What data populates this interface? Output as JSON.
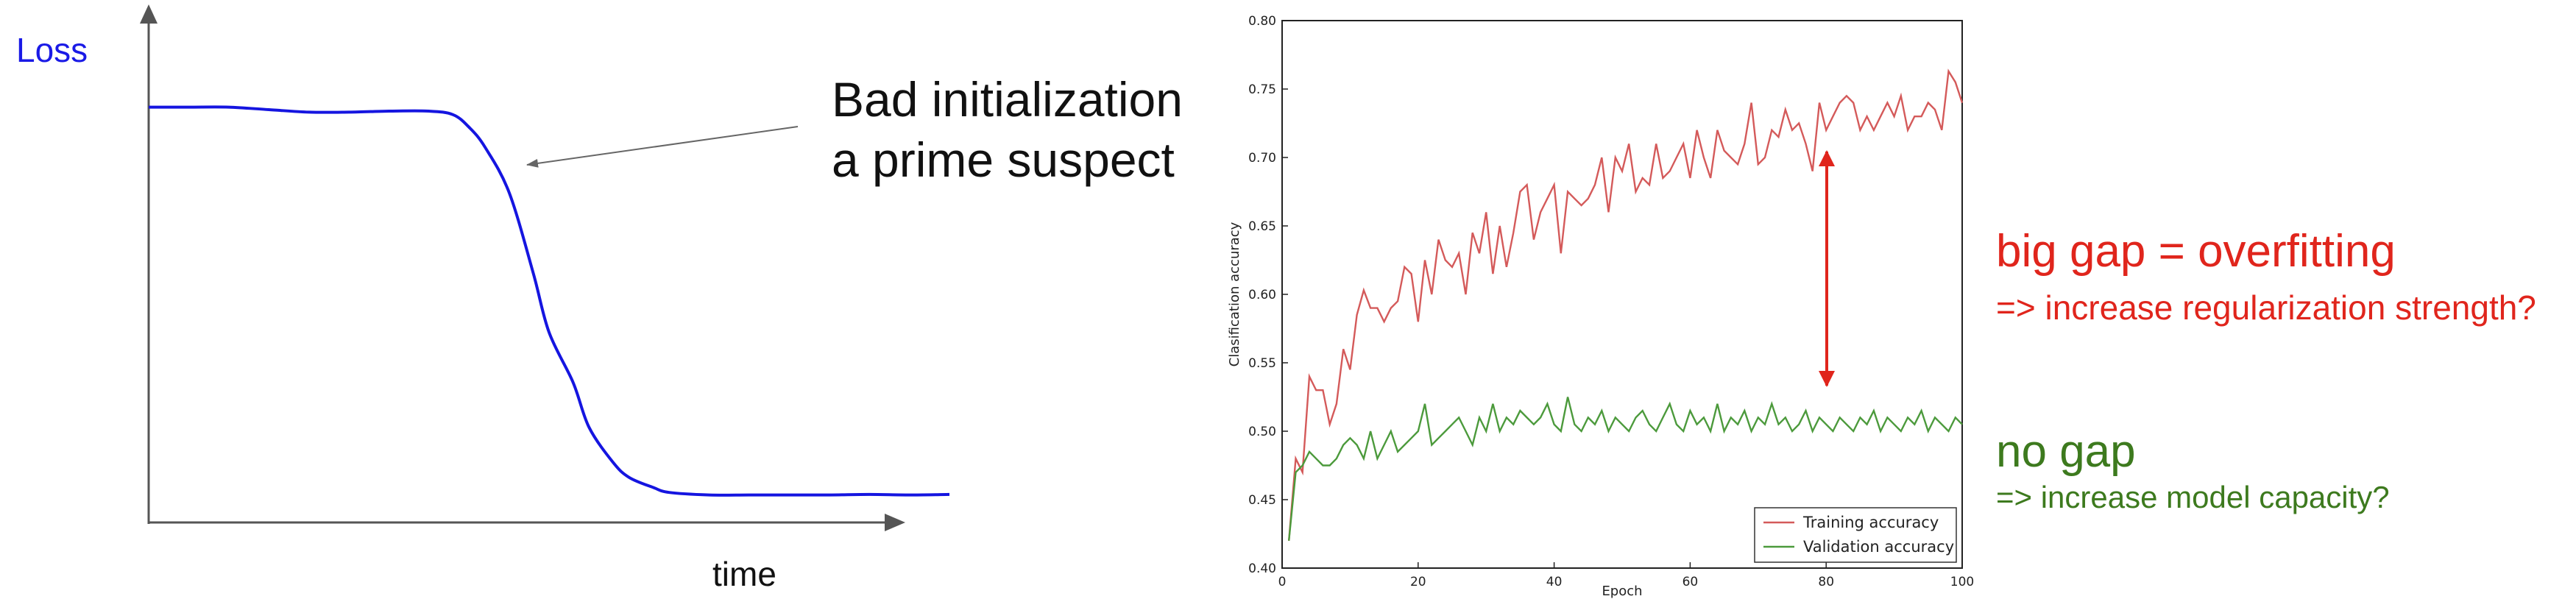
{
  "colors": {
    "loss_curve": "#1515e0",
    "loss_label": "#1a1ae6",
    "training": "#d45a5a",
    "validation": "#4c9a3c",
    "gap_arrow": "#e0251c",
    "overfit_text": "#e0251c",
    "nogap_text": "#3d7a1e",
    "axis": "#555555"
  },
  "left_panel": {
    "y_label": "Loss",
    "x_label": "time",
    "annotation_line1": "Bad initialization",
    "annotation_line2": "a prime suspect"
  },
  "right_panel": {
    "overfit_title": "big gap = overfitting",
    "overfit_hint": "=> increase regularization strength?",
    "nogap_title": "no gap",
    "nogap_hint": "=> increase model capacity?"
  },
  "chart_data": [
    {
      "type": "line",
      "title": "",
      "xlabel": "time",
      "ylabel": "Loss",
      "x": [
        0,
        0.05,
        0.1,
        0.15,
        0.2,
        0.25,
        0.3,
        0.35,
        0.38,
        0.4,
        0.42,
        0.45,
        0.48,
        0.5,
        0.53,
        0.55,
        0.58,
        0.6,
        0.63,
        0.65,
        0.7,
        0.75,
        0.8,
        0.85,
        0.9,
        0.95,
        1.0
      ],
      "series": [
        {
          "values": [
            0.83,
            0.83,
            0.83,
            0.825,
            0.82,
            0.82,
            0.822,
            0.822,
            0.815,
            0.79,
            0.75,
            0.66,
            0.5,
            0.38,
            0.28,
            0.19,
            0.12,
            0.09,
            0.07,
            0.06,
            0.055,
            0.055,
            0.055,
            0.055,
            0.056,
            0.055,
            0.056
          ]
        }
      ]
    },
    {
      "type": "line",
      "title": "",
      "xlabel": "Epoch",
      "ylabel": "Clasification accuracy",
      "xlim": [
        0,
        100
      ],
      "ylim": [
        0.4,
        0.8
      ],
      "x_ticks": [
        "0",
        "20",
        "40",
        "60",
        "80",
        "100"
      ],
      "y_ticks": [
        "0.40",
        "0.45",
        "0.50",
        "0.55",
        "0.60",
        "0.65",
        "0.70",
        "0.75",
        "0.80"
      ],
      "legend_position": "lower right",
      "grid": false,
      "x": [
        1,
        2,
        3,
        4,
        5,
        6,
        7,
        8,
        9,
        10,
        11,
        12,
        13,
        14,
        15,
        16,
        17,
        18,
        19,
        20,
        21,
        22,
        23,
        24,
        25,
        26,
        27,
        28,
        29,
        30,
        31,
        32,
        33,
        34,
        35,
        36,
        37,
        38,
        39,
        40,
        41,
        42,
        43,
        44,
        45,
        46,
        47,
        48,
        49,
        50,
        51,
        52,
        53,
        54,
        55,
        56,
        57,
        58,
        59,
        60,
        61,
        62,
        63,
        64,
        65,
        66,
        67,
        68,
        69,
        70,
        71,
        72,
        73,
        74,
        75,
        76,
        77,
        78,
        79,
        80,
        81,
        82,
        83,
        84,
        85,
        86,
        87,
        88,
        89,
        90,
        91,
        92,
        93,
        94,
        95,
        96,
        97,
        98,
        99,
        100
      ],
      "series": [
        {
          "name": "Training accuracy",
          "values": [
            0.42,
            0.48,
            0.47,
            0.54,
            0.53,
            0.53,
            0.505,
            0.52,
            0.56,
            0.545,
            0.585,
            0.603,
            0.59,
            0.59,
            0.58,
            0.59,
            0.595,
            0.62,
            0.615,
            0.58,
            0.625,
            0.6,
            0.64,
            0.625,
            0.62,
            0.63,
            0.6,
            0.645,
            0.63,
            0.66,
            0.615,
            0.65,
            0.62,
            0.645,
            0.675,
            0.68,
            0.64,
            0.66,
            0.67,
            0.68,
            0.63,
            0.675,
            0.67,
            0.665,
            0.67,
            0.68,
            0.7,
            0.66,
            0.7,
            0.69,
            0.71,
            0.675,
            0.685,
            0.68,
            0.71,
            0.685,
            0.69,
            0.7,
            0.71,
            0.685,
            0.72,
            0.7,
            0.685,
            0.72,
            0.705,
            0.7,
            0.695,
            0.71,
            0.74,
            0.695,
            0.7,
            0.72,
            0.715,
            0.735,
            0.72,
            0.725,
            0.71,
            0.69,
            0.74,
            0.72,
            0.73,
            0.74,
            0.745,
            0.74,
            0.72,
            0.73,
            0.72,
            0.73,
            0.74,
            0.73,
            0.745,
            0.72,
            0.73,
            0.73,
            0.74,
            0.735,
            0.72,
            0.763,
            0.755,
            0.74
          ]
        },
        {
          "name": "Validation accuracy",
          "values": [
            0.42,
            0.47,
            0.475,
            0.485,
            0.48,
            0.475,
            0.475,
            0.48,
            0.49,
            0.495,
            0.49,
            0.48,
            0.5,
            0.48,
            0.49,
            0.5,
            0.485,
            0.49,
            0.495,
            0.5,
            0.52,
            0.49,
            0.495,
            0.5,
            0.505,
            0.51,
            0.5,
            0.49,
            0.51,
            0.5,
            0.52,
            0.5,
            0.51,
            0.505,
            0.515,
            0.51,
            0.505,
            0.51,
            0.52,
            0.505,
            0.5,
            0.525,
            0.505,
            0.5,
            0.51,
            0.505,
            0.515,
            0.5,
            0.51,
            0.505,
            0.5,
            0.51,
            0.515,
            0.505,
            0.5,
            0.51,
            0.52,
            0.505,
            0.5,
            0.515,
            0.505,
            0.51,
            0.5,
            0.52,
            0.5,
            0.51,
            0.505,
            0.515,
            0.5,
            0.51,
            0.505,
            0.52,
            0.505,
            0.51,
            0.5,
            0.505,
            0.515,
            0.5,
            0.51,
            0.505,
            0.5,
            0.51,
            0.505,
            0.5,
            0.51,
            0.505,
            0.515,
            0.5,
            0.51,
            0.505,
            0.5,
            0.51,
            0.505,
            0.515,
            0.5,
            0.51,
            0.505,
            0.5,
            0.51,
            0.505
          ]
        }
      ]
    }
  ]
}
